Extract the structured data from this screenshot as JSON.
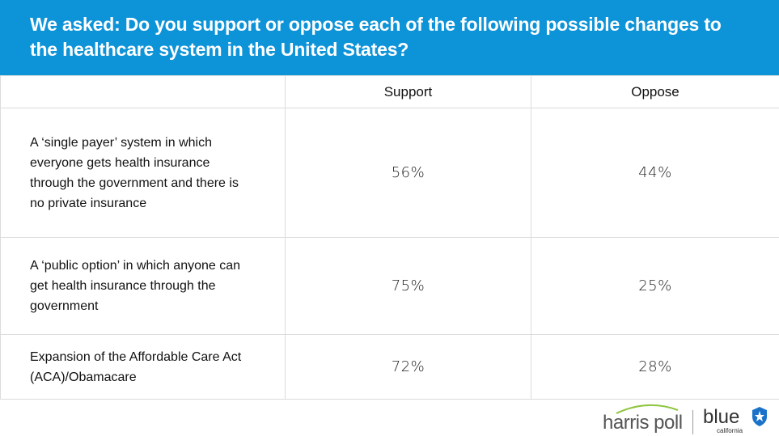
{
  "header": {
    "title": "We asked: Do you support or oppose each of the following possible changes to the healthcare system in the United States?"
  },
  "chart_data": {
    "type": "table",
    "columns": [
      "",
      "Support",
      "Oppose"
    ],
    "rows": [
      {
        "label": "A ‘single payer’ system in which everyone gets health insurance through the government and there is no private insurance",
        "label_lines": [
          "A ‘single payer’ system in which",
          "everyone gets health insurance",
          "through the government and there is",
          "no private insurance"
        ],
        "support": "56%",
        "oppose": "44%"
      },
      {
        "label": "A ‘public option’ in which anyone can get health insurance through the government",
        "label_lines": [
          "A ‘public option’ in which anyone can",
          "get health insurance through the",
          "government"
        ],
        "support": "75%",
        "oppose": "25%"
      },
      {
        "label": "Expansion of the Affordable Care Act (ACA)/Obamacare",
        "label_lines": [
          "Expansion of the Affordable Care Act",
          "(ACA)/Obamacare"
        ],
        "support": "72%",
        "oppose": "28%"
      }
    ]
  },
  "footer": {
    "harris_logo": "harris poll",
    "blue_logo": "blue",
    "blue_logo_sub": "california"
  },
  "colors": {
    "header_bg": "#0d93d8",
    "header_text": "#ffffff",
    "grid_line": "#dcdcdc",
    "harris_swoosh": "#8dc63f",
    "shield": "#1a73c9"
  },
  "icons": [
    "harris-swoosh-icon",
    "blue-shield-icon"
  ]
}
